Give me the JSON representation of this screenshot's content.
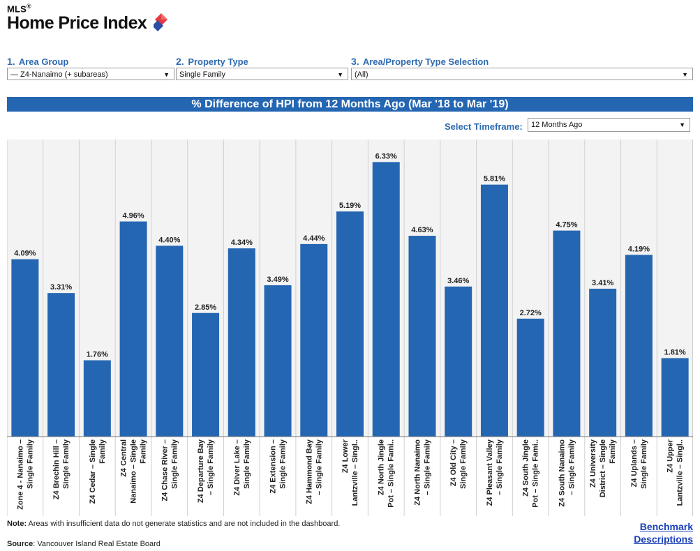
{
  "logo": {
    "mls": "MLS",
    "reg": "®",
    "title": "Home Price Index"
  },
  "filters": [
    {
      "num": "1.",
      "label": "Area Group",
      "value": "— Z4-Nanaimo (+ subareas)"
    },
    {
      "num": "2.",
      "label": "Property Type",
      "value": "Single Family"
    },
    {
      "num": "3.",
      "label": "Area/Property Type Selection",
      "value": "(All)"
    }
  ],
  "timeframe": {
    "label": "Select Timeframe:",
    "value": "12 Months Ago"
  },
  "chart_data": {
    "type": "bar",
    "title": "% Difference of HPI from 12 Months Ago (Mar '18 to Mar '19)",
    "categories": [
      [
        "Zone 4 - Nanaimo –",
        "Single Family"
      ],
      [
        "Z4 Brechin Hill –",
        "Single Family"
      ],
      [
        "Z4 Cedar – Single",
        "Family"
      ],
      [
        "Z4 Central",
        "Nanaimo – Single",
        "Family"
      ],
      [
        "Z4 Chase River –",
        "Single Family"
      ],
      [
        "Z4 Departure Bay",
        "– Single Family"
      ],
      [
        "Z4 Diver Lake –",
        "Single Family"
      ],
      [
        "Z4 Extension –",
        "Single Family"
      ],
      [
        "Z4 Hammond Bay",
        "– Single Family"
      ],
      [
        "Z4 Lower",
        "Lantzville – Singl.."
      ],
      [
        "Z4 North Jingle",
        "Pot – Single Fami.."
      ],
      [
        "Z4 North Nanaimo",
        "– Single Family"
      ],
      [
        "Z4 Old City –",
        "Single Family"
      ],
      [
        "Z4 Pleasant Valley",
        "– Single Family"
      ],
      [
        "Z4 South Jingle",
        "Pot – Single Fami.."
      ],
      [
        "Z4 South Nanaimo",
        "– Single Family"
      ],
      [
        "Z4 University",
        "District – Single",
        "Family"
      ],
      [
        "Z4 Uplands –",
        "Single Family"
      ],
      [
        "Z4 Upper",
        "Lantzville – Singl.."
      ]
    ],
    "values": [
      4.09,
      3.31,
      1.76,
      4.96,
      4.4,
      2.85,
      4.34,
      3.49,
      4.44,
      5.19,
      6.33,
      4.63,
      3.46,
      5.81,
      2.72,
      4.75,
      3.41,
      4.19,
      1.81
    ],
    "labels": [
      "4.09%",
      "3.31%",
      "1.76%",
      "4.96%",
      "4.40%",
      "2.85%",
      "4.34%",
      "3.49%",
      "4.44%",
      "5.19%",
      "6.33%",
      "4.63%",
      "3.46%",
      "5.81%",
      "2.72%",
      "4.75%",
      "3.41%",
      "4.19%",
      "1.81%"
    ],
    "ylim": [
      0,
      6.85
    ],
    "bar_color": "#2566b2",
    "band_color": "#f3f3f3",
    "grid": false
  },
  "note": {
    "bold": "Note:",
    "text": " Areas with insufficient data do not generate statistics and are not included in the dashboard."
  },
  "source": {
    "bold": "Source",
    "text": ": Vancouver Island Real Estate Board"
  },
  "bench": {
    "line1": "Benchmark",
    "line2": "Descriptions"
  }
}
